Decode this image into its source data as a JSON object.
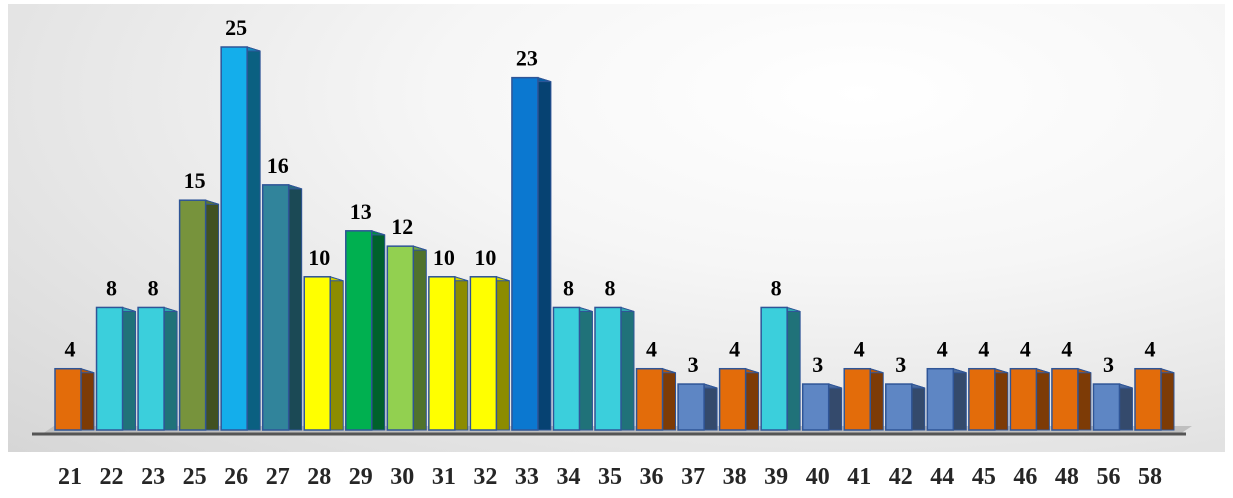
{
  "chart_data": {
    "type": "bar",
    "title": "",
    "xlabel": "",
    "ylabel": "",
    "categories": [
      "21",
      "22",
      "23",
      "25",
      "26",
      "27",
      "28",
      "29",
      "30",
      "31",
      "32",
      "33",
      "34",
      "35",
      "36",
      "37",
      "38",
      "39",
      "40",
      "41",
      "42",
      "44",
      "45",
      "46",
      "48",
      "56",
      "58"
    ],
    "values": [
      4,
      8,
      8,
      15,
      25,
      16,
      10,
      13,
      12,
      10,
      10,
      23,
      8,
      8,
      4,
      3,
      4,
      8,
      3,
      4,
      3,
      4,
      4,
      4,
      4,
      3,
      4
    ],
    "ylim": [
      0,
      25
    ],
    "grid": false,
    "legend": "none",
    "data_labels": true,
    "bar_colors": [
      "#E36C0A",
      "#3BCFDC",
      "#3BCFDC",
      "#77933C",
      "#14AEEB",
      "#31849B",
      "#FFFF00",
      "#00B050",
      "#92D050",
      "#FFFF00",
      "#FFFF00",
      "#0B78D0",
      "#3BCFDC",
      "#3BCFDC",
      "#E36C0A",
      "#5E86C4",
      "#E36C0A",
      "#3BCFDC",
      "#5E86C4",
      "#E36C0A",
      "#5E86C4",
      "#5E86C4",
      "#E36C0A",
      "#E36C0A",
      "#E36C0A",
      "#5E86C4",
      "#E36C0A"
    ]
  }
}
